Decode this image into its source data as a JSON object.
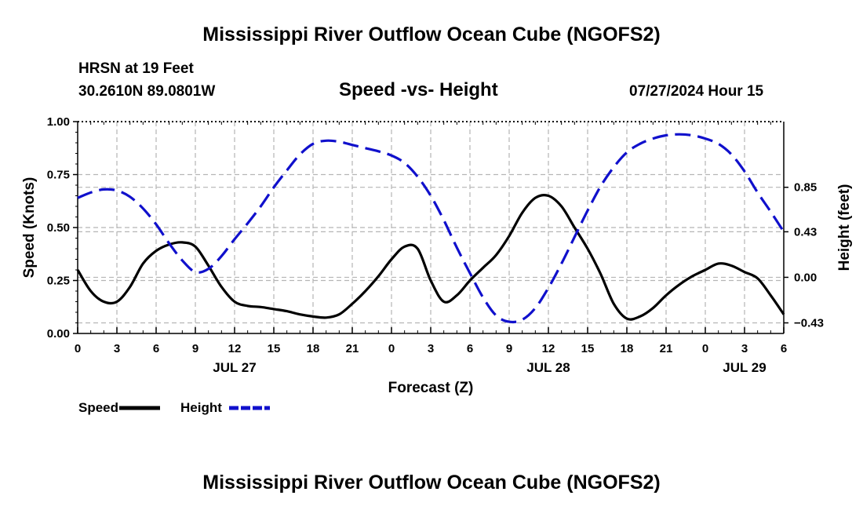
{
  "chart_data": {
    "type": "line",
    "title": "Mississippi River Outflow Ocean Cube (NGOFS2)",
    "subtitle": "Speed -vs- Height",
    "station": "HRSN at 19 Feet",
    "location": "30.2610N  89.0801W",
    "run_time": "07/27/2024 Hour 15",
    "xlabel": "Forecast (Z)",
    "ylabel_left": "Speed (Knots)",
    "ylabel_right": "Height (feet)",
    "x_hours_range": [
      0,
      54
    ],
    "x_tick_labels": [
      "0",
      "3",
      "6",
      "9",
      "12",
      "15",
      "18",
      "21",
      "0",
      "3",
      "6",
      "9",
      "12",
      "15",
      "18",
      "21",
      "0",
      "3",
      "6"
    ],
    "date_labels": [
      {
        "hour": 12,
        "text": "JUL 27"
      },
      {
        "hour": 36,
        "text": "JUL 28"
      },
      {
        "hour": 51,
        "text": "JUL 29"
      }
    ],
    "ylim_left": [
      0,
      1.0
    ],
    "yticks_left": [
      "0.00",
      "0.25",
      "0.50",
      "0.75",
      "1.00"
    ],
    "ylim_right": [
      -0.53,
      1.47
    ],
    "yticks_right": [
      "-0.43",
      "0.00",
      "0.43",
      "0.85"
    ],
    "grid": true,
    "series": [
      {
        "name": "Speed",
        "axis": "left",
        "color": "#000000",
        "style": "solid",
        "x": [
          0,
          1,
          2,
          3,
          4,
          5,
          6,
          7,
          8,
          9,
          10,
          11,
          12,
          13,
          14,
          15,
          16,
          17,
          18,
          19,
          20,
          21,
          22,
          23,
          24,
          25,
          26,
          27,
          28,
          29,
          30,
          31,
          32,
          33,
          34,
          35,
          36,
          37,
          38,
          39,
          40,
          41,
          42,
          43,
          44,
          45,
          46,
          47,
          48,
          49,
          50,
          51,
          52,
          53,
          54
        ],
        "values": [
          0.3,
          0.2,
          0.15,
          0.15,
          0.22,
          0.33,
          0.39,
          0.42,
          0.43,
          0.41,
          0.32,
          0.22,
          0.15,
          0.13,
          0.125,
          0.115,
          0.105,
          0.09,
          0.08,
          0.075,
          0.09,
          0.14,
          0.2,
          0.27,
          0.35,
          0.41,
          0.4,
          0.25,
          0.15,
          0.18,
          0.25,
          0.31,
          0.37,
          0.46,
          0.57,
          0.64,
          0.65,
          0.6,
          0.5,
          0.4,
          0.28,
          0.14,
          0.07,
          0.08,
          0.12,
          0.18,
          0.23,
          0.27,
          0.3,
          0.33,
          0.32,
          0.29,
          0.26,
          0.18,
          0.09
        ]
      },
      {
        "name": "Height",
        "axis": "right",
        "color": "#1010cc",
        "style": "dashed",
        "x": [
          0,
          1,
          2,
          3,
          4,
          5,
          6,
          7,
          8,
          9,
          10,
          11,
          12,
          13,
          14,
          15,
          16,
          17,
          18,
          19,
          20,
          21,
          22,
          23,
          24,
          25,
          26,
          27,
          28,
          29,
          30,
          31,
          32,
          33,
          34,
          35,
          36,
          37,
          38,
          39,
          40,
          41,
          42,
          43,
          44,
          45,
          46,
          47,
          48,
          49,
          50,
          51,
          52,
          53,
          54
        ],
        "values": [
          0.75,
          0.8,
          0.83,
          0.82,
          0.76,
          0.65,
          0.5,
          0.32,
          0.16,
          0.05,
          0.08,
          0.2,
          0.36,
          0.51,
          0.67,
          0.85,
          1.01,
          1.16,
          1.26,
          1.29,
          1.28,
          1.25,
          1.22,
          1.19,
          1.15,
          1.08,
          0.95,
          0.77,
          0.54,
          0.28,
          0.04,
          -0.19,
          -0.36,
          -0.42,
          -0.4,
          -0.29,
          -0.1,
          0.13,
          0.38,
          0.63,
          0.86,
          1.04,
          1.18,
          1.26,
          1.31,
          1.34,
          1.35,
          1.34,
          1.31,
          1.26,
          1.16,
          1.0,
          0.8,
          0.62,
          0.43
        ]
      }
    ],
    "legend": [
      {
        "label": "Speed",
        "color": "#000000",
        "style": "solid"
      },
      {
        "label": "Height",
        "color": "#1010cc",
        "style": "dashed"
      }
    ]
  }
}
